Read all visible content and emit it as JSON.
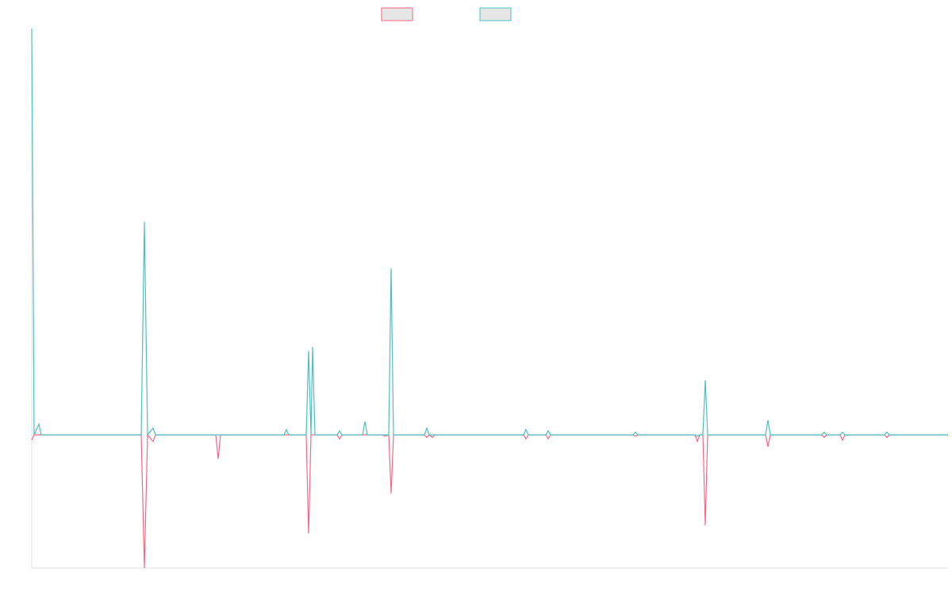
{
  "chart_data": {
    "type": "line",
    "x": [
      0,
      3,
      9,
      12,
      138,
      142,
      146,
      153,
      156,
      232,
      235,
      238,
      318,
      321,
      324,
      346,
      349,
      352,
      354,
      357,
      385,
      388,
      391,
      417,
      420,
      423,
      442,
      445,
      448,
      450,
      453,
      456,
      495,
      498,
      501,
      505,
      508,
      620,
      623,
      626,
      648,
      651,
      654,
      758,
      761,
      764,
      836,
      839,
      842,
      846,
      849,
      852,
      925,
      928,
      931,
      996,
      999,
      1002,
      1019,
      1022,
      1025,
      1075,
      1078,
      1081,
      1155
    ],
    "series": [
      {
        "color": "#ff6384",
        "values": [
          -0.04,
          0,
          0,
          0,
          0,
          -1,
          0,
          -0.05,
          0,
          0,
          -0.18,
          0,
          0,
          0,
          0,
          0,
          -0.74,
          0,
          0,
          0,
          0,
          -0.03,
          0,
          0,
          0,
          0,
          0,
          -0.01,
          0,
          0,
          -0.44,
          0,
          0,
          -0.02,
          0,
          -0.02,
          0,
          0,
          -0.03,
          0,
          0,
          -0.03,
          0,
          0,
          -0.01,
          0,
          0,
          -0.05,
          0,
          0,
          -0.68,
          0,
          0,
          -0.09,
          0,
          0,
          -0.02,
          0,
          0,
          -0.04,
          0,
          0,
          -0.02,
          0,
          0
        ]
      },
      {
        "color": "#4bc0c0",
        "values": [
          3.05,
          0,
          0.08,
          0,
          0,
          1.6,
          0,
          0.05,
          0,
          0,
          0,
          0,
          0,
          0.04,
          0,
          0,
          0.63,
          0,
          0.66,
          0,
          0,
          0.03,
          0,
          0,
          0.1,
          0,
          0,
          0,
          0,
          0,
          1.25,
          0,
          0,
          0.05,
          0,
          0,
          0,
          0,
          0.04,
          0,
          0,
          0.03,
          0,
          0,
          0.02,
          0,
          0,
          -0.01,
          0,
          0,
          0.41,
          0,
          0,
          0.11,
          0,
          0,
          0.02,
          0,
          0,
          0.02,
          0,
          0,
          0.02,
          0,
          0
        ]
      }
    ],
    "xlim": [
      0,
      1155
    ],
    "ylim": [
      -1,
      3.05
    ]
  }
}
